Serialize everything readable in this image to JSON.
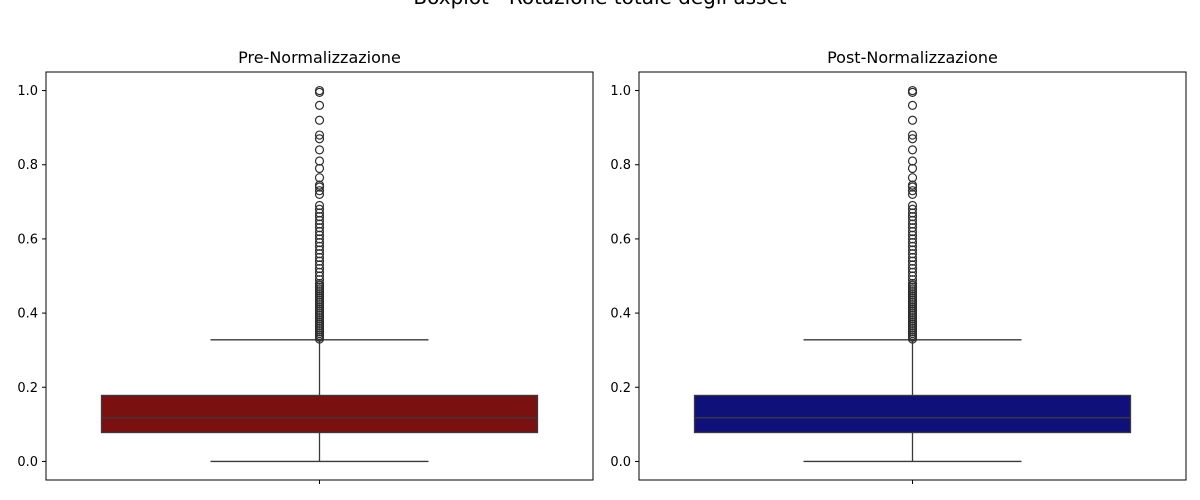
{
  "figure_title": "Boxplot - Rotazione totale degli asset",
  "chart_data": [
    {
      "type": "boxplot",
      "title": "Pre-Normalizzazione",
      "xlabel": "",
      "ylabel": "",
      "ylim": [
        -0.05,
        1.05
      ],
      "yticks": [
        "0.0",
        "0.2",
        "0.4",
        "0.6",
        "0.8",
        "1.0"
      ],
      "box_color": "#7b1010",
      "grid": false,
      "stats": {
        "whisker_low": 0.0,
        "q1": 0.078,
        "median": 0.118,
        "q3": 0.178,
        "whisker_high": 0.328
      },
      "outliers": [
        0.33,
        0.335,
        0.34,
        0.345,
        0.35,
        0.355,
        0.36,
        0.365,
        0.37,
        0.375,
        0.38,
        0.385,
        0.39,
        0.395,
        0.4,
        0.405,
        0.41,
        0.415,
        0.42,
        0.425,
        0.43,
        0.435,
        0.44,
        0.445,
        0.45,
        0.455,
        0.46,
        0.465,
        0.47,
        0.475,
        0.48,
        0.49,
        0.5,
        0.51,
        0.52,
        0.53,
        0.54,
        0.55,
        0.56,
        0.57,
        0.58,
        0.59,
        0.6,
        0.61,
        0.62,
        0.63,
        0.64,
        0.65,
        0.66,
        0.67,
        0.68,
        0.69,
        0.72,
        0.73,
        0.74,
        0.745,
        0.765,
        0.79,
        0.81,
        0.84,
        0.87,
        0.88,
        0.92,
        0.96,
        0.995,
        1.0
      ]
    },
    {
      "type": "boxplot",
      "title": "Post-Normalizzazione",
      "xlabel": "",
      "ylabel": "",
      "ylim": [
        -0.05,
        1.05
      ],
      "yticks": [
        "0.0",
        "0.2",
        "0.4",
        "0.6",
        "0.8",
        "1.0"
      ],
      "box_color": "#10107b",
      "grid": false,
      "stats": {
        "whisker_low": 0.0,
        "q1": 0.078,
        "median": 0.118,
        "q3": 0.178,
        "whisker_high": 0.328
      },
      "outliers": [
        0.33,
        0.335,
        0.34,
        0.345,
        0.35,
        0.355,
        0.36,
        0.365,
        0.37,
        0.375,
        0.38,
        0.385,
        0.39,
        0.395,
        0.4,
        0.405,
        0.41,
        0.415,
        0.42,
        0.425,
        0.43,
        0.435,
        0.44,
        0.445,
        0.45,
        0.455,
        0.46,
        0.465,
        0.47,
        0.475,
        0.48,
        0.49,
        0.5,
        0.51,
        0.52,
        0.53,
        0.54,
        0.55,
        0.56,
        0.57,
        0.58,
        0.59,
        0.6,
        0.61,
        0.62,
        0.63,
        0.64,
        0.65,
        0.66,
        0.67,
        0.68,
        0.69,
        0.72,
        0.73,
        0.74,
        0.745,
        0.765,
        0.79,
        0.81,
        0.84,
        0.87,
        0.88,
        0.92,
        0.96,
        0.995,
        1.0
      ]
    }
  ]
}
